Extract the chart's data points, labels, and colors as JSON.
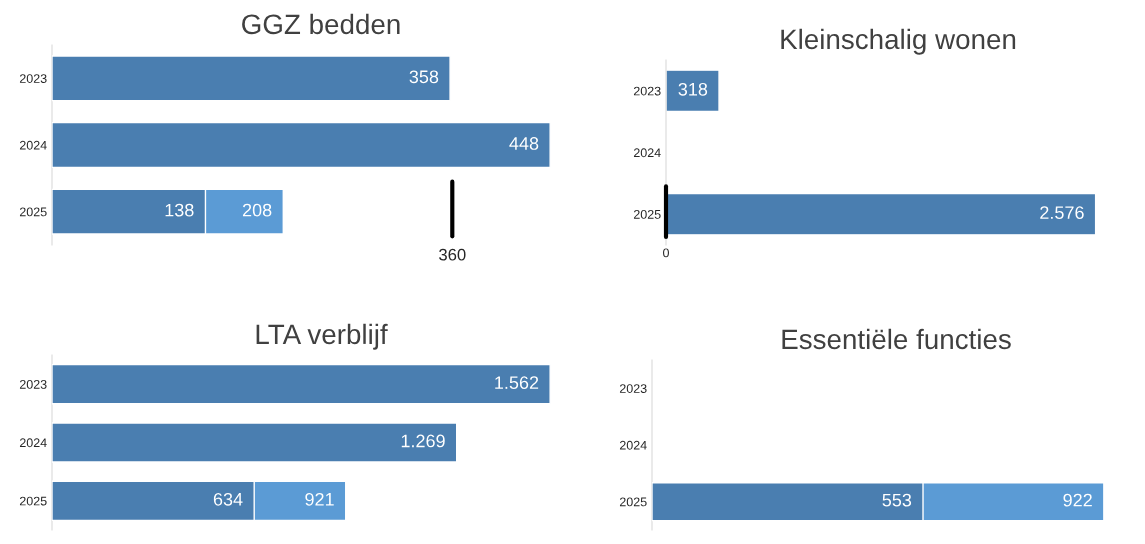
{
  "chart_data": [
    {
      "type": "bar",
      "orientation": "horizontal",
      "title": "GGZ bedden",
      "categories": [
        "2023",
        "2024",
        "2025"
      ],
      "tick_labels": "y",
      "grid": false,
      "legend": false,
      "series": [
        {
          "color": "#5b9bd5",
          "values": [
            null,
            null,
            208
          ],
          "value_labels": [
            null,
            null,
            "208"
          ]
        },
        {
          "color": "#4a7eb0",
          "values": [
            358,
            448,
            138
          ],
          "value_labels": [
            "358",
            "448",
            "138"
          ]
        }
      ],
      "ref_lines": [
        {
          "axis": "x",
          "value": 360,
          "label": "360",
          "color": "#000000"
        }
      ]
    },
    {
      "type": "bar",
      "orientation": "horizontal",
      "title": "Kleinschalig wonen",
      "categories": [
        "2023",
        "2024",
        "2025"
      ],
      "tick_labels": "y",
      "grid": false,
      "legend": false,
      "series": [
        {
          "color": "#4a7eb0",
          "values": [
            318,
            null,
            2576
          ],
          "value_labels": [
            "318",
            null,
            "2.576"
          ]
        }
      ],
      "ref_lines": [
        {
          "axis": "x",
          "value": 0,
          "label": "0",
          "color": "#000000"
        }
      ]
    },
    {
      "type": "bar",
      "orientation": "horizontal",
      "title": "LTA verblijf",
      "categories": [
        "2023",
        "2024",
        "2025"
      ],
      "tick_labels": "y",
      "grid": false,
      "legend": false,
      "series": [
        {
          "color": "#5b9bd5",
          "values": [
            null,
            null,
            921
          ],
          "value_labels": [
            null,
            null,
            "921"
          ]
        },
        {
          "color": "#4a7eb0",
          "values": [
            1562,
            1269,
            634
          ],
          "value_labels": [
            "1.562",
            "1.269",
            "634"
          ]
        }
      ]
    },
    {
      "type": "bar",
      "orientation": "horizontal",
      "title": "Essentiële functies",
      "categories": [
        "2023",
        "2024",
        "2025"
      ],
      "tick_labels": "y",
      "grid": false,
      "legend": false,
      "series": [
        {
          "color": "#5b9bd5",
          "values": [
            null,
            null,
            922
          ],
          "value_labels": [
            null,
            null,
            "922"
          ]
        },
        {
          "color": "#4a7eb0",
          "values": [
            null,
            null,
            553
          ],
          "value_labels": [
            null,
            null,
            "553"
          ]
        }
      ]
    }
  ]
}
